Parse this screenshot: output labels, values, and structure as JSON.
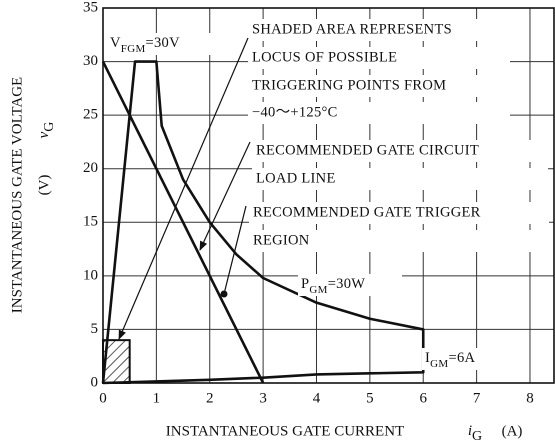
{
  "chart_data": {
    "type": "line",
    "xlabel": {
      "text": "INSTANTANEOUS GATE CURRENT",
      "symbol": "i",
      "sub": "G",
      "unit": "(A)"
    },
    "ylabel": {
      "text": "INSTANTANEOUS GATE VOLTAGE",
      "symbol": "v",
      "sub": "G",
      "unit": "(V)"
    },
    "xlim": [
      0,
      8.45
    ],
    "xticks": [
      0,
      1,
      2,
      3,
      4,
      5,
      6,
      7,
      8
    ],
    "ylim": [
      0,
      35
    ],
    "yticks": [
      0,
      5,
      10,
      15,
      20,
      25,
      30,
      35
    ],
    "grid": true,
    "series": [
      {
        "color": "#111111",
        "x": [
          0,
          0.6,
          1,
          1.05,
          1.1,
          1.5,
          2,
          2.5,
          3,
          4,
          5,
          6,
          6,
          5,
          4,
          3,
          2,
          1,
          0
        ],
        "values": [
          0,
          30,
          30,
          27,
          24,
          19,
          15,
          12,
          9.8,
          7.5,
          6,
          5,
          1,
          0.9,
          0.8,
          0.5,
          0.3,
          0.15,
          0
        ]
      },
      {
        "color": "#111111",
        "x": [
          0,
          3
        ],
        "values": [
          30,
          0
        ]
      }
    ],
    "shaded_region": {
      "x": [
        0,
        0.5
      ],
      "y": [
        0,
        4
      ]
    },
    "annotations": {
      "vfgm": {
        "text": "V",
        "sub": "FGM",
        "rest": "=30V"
      },
      "pgm": {
        "text": "P",
        "sub": "GM",
        "rest": "=30W"
      },
      "igm": {
        "text": "I",
        "sub": "GM",
        "rest": "=6A"
      },
      "shaded": [
        "SHADED AREA REPRESENTS",
        "LOCUS OF POSSIBLE",
        "TRIGGERING POINTS FROM",
        "−40～+125°C"
      ],
      "load_line": [
        "RECOMMENDED GATE CIRCUIT",
        "LOAD LINE"
      ],
      "trigger": [
        "RECOMMENDED GATE TRIGGER",
        "REGION"
      ]
    }
  }
}
